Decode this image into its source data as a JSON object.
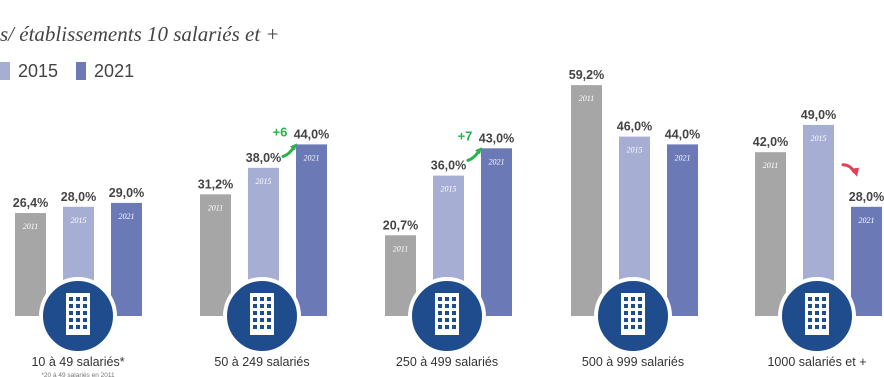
{
  "title": "s/ établissements 10 salariés et +",
  "legend": [
    {
      "label": "2015",
      "color": "#a7aed3"
    },
    {
      "label": "2021",
      "color": "#6b79b6"
    }
  ],
  "colors": {
    "2011": "#a6a6a6",
    "2015": "#a7aed3",
    "2021": "#6b79b6",
    "icon_circle": "#1e4c8c",
    "up_arrow": "#27b24a",
    "down_arrow": "#e2405a"
  },
  "footnote": "*20 à 49 salariés en 2011",
  "chart_data": {
    "type": "bar",
    "categories": [
      "10 à 49 salariés*",
      "50 à 249 salariés",
      "250 à 499 salariés",
      "500 à 999 salariés",
      "1000 salariés et +"
    ],
    "series": [
      {
        "name": "2011",
        "values": [
          26.4,
          31.2,
          20.7,
          59.2,
          42.0
        ],
        "labels": [
          "26,4%",
          "31,2%",
          "20,7%",
          "59,2%",
          "42,0%"
        ]
      },
      {
        "name": "2015",
        "values": [
          28.0,
          38.0,
          36.0,
          46.0,
          49.0
        ],
        "labels": [
          "28,0%",
          "38,0%",
          "36,0%",
          "46,0%",
          "49,0%"
        ]
      },
      {
        "name": "2021",
        "values": [
          29.0,
          44.0,
          43.0,
          44.0,
          28.0
        ],
        "labels": [
          "29,0%",
          "44,0%",
          "43,0%",
          "44,0%",
          "28,0%"
        ]
      }
    ],
    "annotations": [
      {
        "category": "50 à 249 salariés",
        "text": "+6",
        "direction": "up"
      },
      {
        "category": "250 à 499 salariés",
        "text": "+7",
        "direction": "up"
      },
      {
        "category": "1000 salariés et +",
        "text": "",
        "direction": "down"
      }
    ],
    "ylim": [
      0,
      60
    ],
    "grid": false
  }
}
